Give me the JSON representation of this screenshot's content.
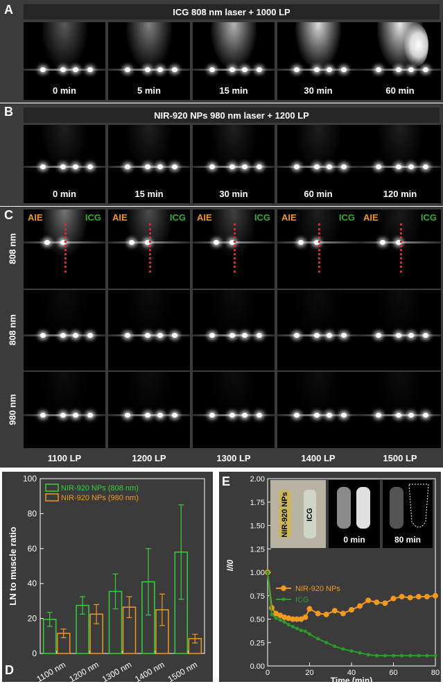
{
  "panelA": {
    "letter": "A",
    "title": "ICG  808 nm laser + 1000 LP",
    "times": [
      "0 min",
      "5 min",
      "15 min",
      "30 min",
      "60 min"
    ]
  },
  "panelB": {
    "letter": "B",
    "title": "NIR-920 NPs  980 nm laser + 1200 LP",
    "times": [
      "0 min",
      "15 min",
      "30 min",
      "60 min",
      "120 min"
    ]
  },
  "panelC": {
    "letter": "C",
    "aie": "AIE",
    "icg": "ICG",
    "rows": [
      "808 nm",
      "808 nm",
      "980 nm"
    ],
    "filters": [
      "1100 LP",
      "1200 LP",
      "1300 LP",
      "1400 LP",
      "1500 LP"
    ]
  },
  "panelD": {
    "letter": "D",
    "chart_data": {
      "type": "bar",
      "categories": [
        "1100 nm",
        "1200 nm",
        "1300 nm",
        "1400 nm",
        "1500 nm"
      ],
      "series": [
        {
          "name": "NIR-920 NPs (808 nm)",
          "color": "#39d13a",
          "values": [
            19.5,
            27.5,
            35.5,
            41,
            58
          ],
          "errors": [
            4,
            5,
            10,
            19,
            27
          ]
        },
        {
          "name": "NIR-920 NPs (980 nm)",
          "color": "#f39a1e",
          "values": [
            11.5,
            22.5,
            26.5,
            25,
            8.5
          ],
          "errors": [
            2.5,
            5.5,
            6,
            9,
            2.5
          ]
        }
      ],
      "ylabel": "LN to muscle ratio",
      "ylim": [
        0,
        100
      ],
      "yticks": [
        "0",
        "20",
        "40",
        "60",
        "80",
        "100"
      ],
      "legend": "top-left"
    }
  },
  "panelE": {
    "letter": "E",
    "inset_labels": {
      "np": "NIR-920 NPs",
      "icg": "ICG",
      "t0": "0 min",
      "t80": "80 min"
    },
    "chart_data": {
      "type": "line",
      "xlabel": "Time (min)",
      "ylabel": "I/I0",
      "xlim": [
        0,
        80
      ],
      "ylim": [
        0,
        2.0
      ],
      "xticks": [
        "0",
        "20",
        "40",
        "60",
        "80"
      ],
      "yticks": [
        "0.00",
        "0.25",
        "0.50",
        "0.75",
        "1.00",
        "1.25",
        "1.50",
        "1.75",
        "2.00"
      ],
      "series": [
        {
          "name": "NIR-920 NPs",
          "color": "#f39a1e",
          "x": [
            0,
            2,
            4,
            6,
            8,
            10,
            12,
            14,
            16,
            18,
            20,
            24,
            28,
            32,
            36,
            40,
            44,
            48,
            52,
            56,
            60,
            64,
            68,
            72,
            76,
            80
          ],
          "y": [
            1.0,
            0.62,
            0.56,
            0.54,
            0.52,
            0.51,
            0.5,
            0.5,
            0.5,
            0.52,
            0.61,
            0.56,
            0.55,
            0.59,
            0.56,
            0.6,
            0.64,
            0.7,
            0.68,
            0.67,
            0.72,
            0.74,
            0.73,
            0.74,
            0.74,
            0.75
          ]
        },
        {
          "name": "ICG",
          "color": "#2a9c2a",
          "x": [
            0,
            2,
            4,
            6,
            8,
            10,
            12,
            14,
            16,
            18,
            20,
            24,
            28,
            32,
            36,
            40,
            44,
            48,
            52,
            56,
            60,
            64,
            68,
            72,
            76,
            80
          ],
          "y": [
            1.0,
            0.55,
            0.51,
            0.49,
            0.47,
            0.44,
            0.42,
            0.4,
            0.38,
            0.37,
            0.34,
            0.29,
            0.25,
            0.21,
            0.18,
            0.16,
            0.14,
            0.12,
            0.11,
            0.11,
            0.11,
            0.11,
            0.11,
            0.11,
            0.11,
            0.11
          ]
        }
      ]
    }
  }
}
